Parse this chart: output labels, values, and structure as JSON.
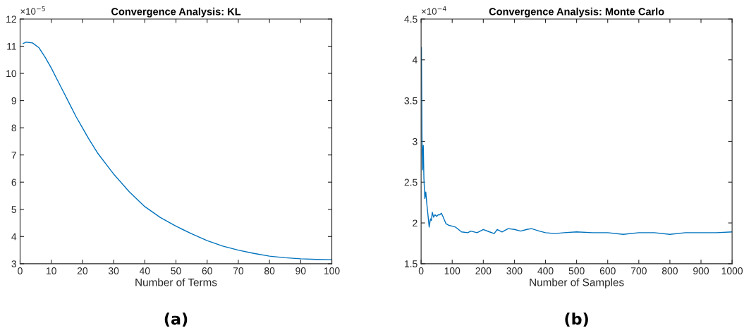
{
  "chart_data": [
    {
      "type": "line",
      "title": "Convergence Analysis: KL",
      "xlabel": "Number of Terms",
      "annotations": [
        "×10$^{−5}$",
        "(a)"
      ],
      "x": [
        1,
        2,
        4,
        6,
        8,
        10,
        12,
        14,
        16,
        18,
        20,
        22,
        25,
        28,
        30,
        35,
        40,
        45,
        50,
        55,
        60,
        65,
        70,
        75,
        80,
        85,
        90,
        95,
        100
      ],
      "series": [
        {
          "color": "#0072bd",
          "values": [
            11.1,
            11.15,
            11.12,
            10.95,
            10.6,
            10.2,
            9.75,
            9.3,
            8.85,
            8.4,
            8.0,
            7.6,
            7.05,
            6.6,
            6.3,
            5.65,
            5.1,
            4.7,
            4.38,
            4.1,
            3.85,
            3.65,
            3.5,
            3.38,
            3.28,
            3.22,
            3.18,
            3.16,
            3.15
          ]
        }
      ],
      "xlim": [
        0,
        100
      ],
      "xticks": [
        0,
        10,
        20,
        30,
        40,
        50,
        60,
        70,
        80,
        90,
        100
      ],
      "ylim": [
        3,
        12
      ],
      "yticks": [
        3,
        4,
        5,
        6,
        7,
        8,
        9,
        10,
        11,
        12
      ]
    },
    {
      "type": "line",
      "title": "Convergence Analysis: Monte Carlo",
      "xlabel": "Number of Samples",
      "annotations": [
        "×10$^{−4}$",
        "(b)"
      ],
      "x": [
        1,
        3,
        5,
        7,
        9,
        12,
        15,
        18,
        22,
        26,
        30,
        33,
        36,
        40,
        45,
        50,
        55,
        60,
        65,
        70,
        80,
        90,
        100,
        110,
        120,
        130,
        150,
        160,
        180,
        200,
        220,
        235,
        245,
        260,
        280,
        300,
        320,
        340,
        355,
        380,
        400,
        430,
        460,
        500,
        550,
        600,
        650,
        700,
        750,
        800,
        850,
        900,
        950,
        1000
      ],
      "series": [
        {
          "color": "#0072bd",
          "values": [
            4.15,
            3.0,
            2.65,
            2.95,
            2.55,
            2.3,
            2.38,
            2.25,
            2.1,
            1.95,
            2.05,
            2.03,
            2.13,
            2.07,
            2.1,
            2.08,
            2.1,
            2.1,
            2.12,
            2.08,
            1.99,
            1.97,
            1.96,
            1.95,
            1.92,
            1.89,
            1.88,
            1.9,
            1.88,
            1.92,
            1.89,
            1.87,
            1.92,
            1.89,
            1.93,
            1.92,
            1.9,
            1.92,
            1.93,
            1.9,
            1.88,
            1.87,
            1.88,
            1.89,
            1.88,
            1.88,
            1.86,
            1.88,
            1.88,
            1.86,
            1.88,
            1.88,
            1.88,
            1.89
          ]
        }
      ],
      "xlim": [
        0,
        1000
      ],
      "xticks": [
        0,
        100,
        200,
        300,
        400,
        500,
        600,
        700,
        800,
        900,
        1000
      ],
      "ylim": [
        1.5,
        4.5
      ],
      "yticks": [
        1.5,
        2,
        2.5,
        3,
        3.5,
        4,
        4.5
      ]
    }
  ]
}
